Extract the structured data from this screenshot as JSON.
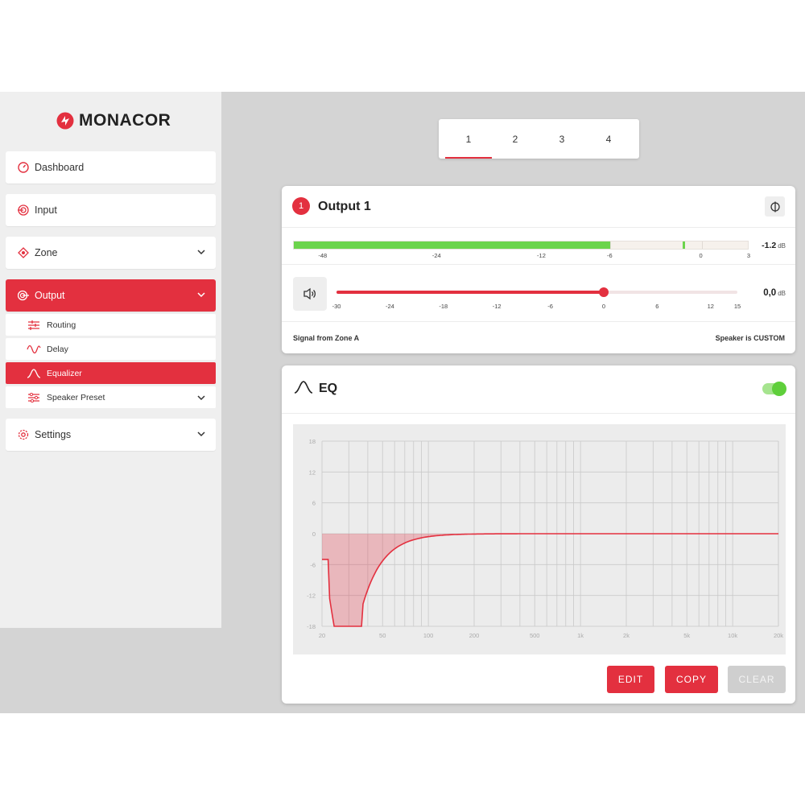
{
  "brand": {
    "name": "MONACOR",
    "accent": "#e3303f"
  },
  "sidebar": {
    "items": [
      {
        "label": "Dashboard",
        "icon": "dashboard-gauge-icon"
      },
      {
        "label": "Input",
        "icon": "input-target-icon"
      },
      {
        "label": "Zone",
        "icon": "zone-speaker-icon"
      },
      {
        "label": "Output",
        "icon": "output-icon",
        "active": true
      }
    ],
    "output_sub": [
      {
        "label": "Routing",
        "icon": "routing-icon"
      },
      {
        "label": "Delay",
        "icon": "delay-wave-icon"
      },
      {
        "label": "Equalizer",
        "icon": "equalizer-curve-icon",
        "active": true
      },
      {
        "label": "Speaker Preset",
        "icon": "sliders-icon"
      }
    ],
    "settings": {
      "label": "Settings",
      "icon": "gear-icon"
    }
  },
  "tabs": [
    {
      "label": "1",
      "active": true
    },
    {
      "label": "2"
    },
    {
      "label": "3"
    },
    {
      "label": "4"
    }
  ],
  "output": {
    "badge": "1",
    "title": "Output 1",
    "level": {
      "value": "-1.2",
      "unit": "dB",
      "ticks": [
        "-48",
        "-24",
        "-12",
        "-6",
        "0",
        "3"
      ],
      "fill_db": -6,
      "peak_db": -1.2
    },
    "volume": {
      "value": "0,0",
      "unit": "dB",
      "ticks": [
        "-30",
        "-24",
        "-18",
        "-12",
        "-6",
        "0",
        "6",
        "12",
        "15"
      ],
      "current_db": 0
    },
    "signal_text": "Signal from Zone A",
    "speaker_text": "Speaker is CUSTOM"
  },
  "eq": {
    "title": "EQ",
    "enabled": true,
    "y_ticks": [
      "18",
      "12",
      "6",
      "0",
      "-6",
      "-12",
      "-18"
    ],
    "x_ticks": [
      "20",
      "50",
      "100",
      "200",
      "500",
      "1k",
      "2k",
      "5k",
      "10k",
      "20k"
    ],
    "buttons": {
      "edit": "EDIT",
      "copy": "COPY",
      "clear": "CLEAR"
    },
    "curve_color": "#e3303f"
  }
}
